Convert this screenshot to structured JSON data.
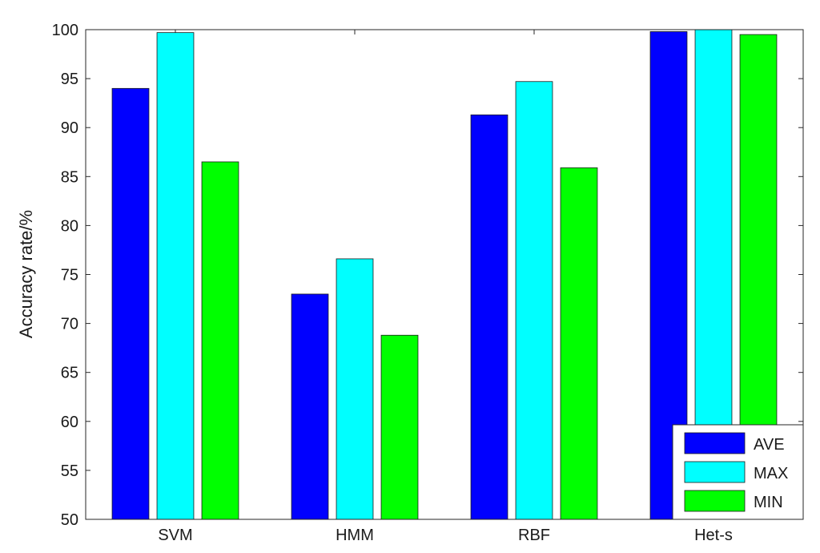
{
  "chart_data": {
    "type": "bar",
    "title": "",
    "xlabel": "",
    "ylabel": "Accuracy rate/%",
    "categories": [
      "SVM",
      "HMM",
      "RBF",
      "Het-s"
    ],
    "series": [
      {
        "name": "AVE",
        "color": "#0000ff",
        "values": [
          94.0,
          73.0,
          91.3,
          99.8
        ]
      },
      {
        "name": "MAX",
        "color": "#00ffff",
        "values": [
          99.7,
          76.6,
          94.7,
          100.0
        ]
      },
      {
        "name": "MIN",
        "color": "#00ff00",
        "values": [
          86.5,
          68.8,
          85.9,
          99.5
        ]
      }
    ],
    "ylim": [
      50,
      100
    ],
    "yticks": [
      50,
      55,
      60,
      65,
      70,
      75,
      80,
      85,
      90,
      95,
      100
    ],
    "grid": false,
    "legend_position": "bottom-right"
  }
}
